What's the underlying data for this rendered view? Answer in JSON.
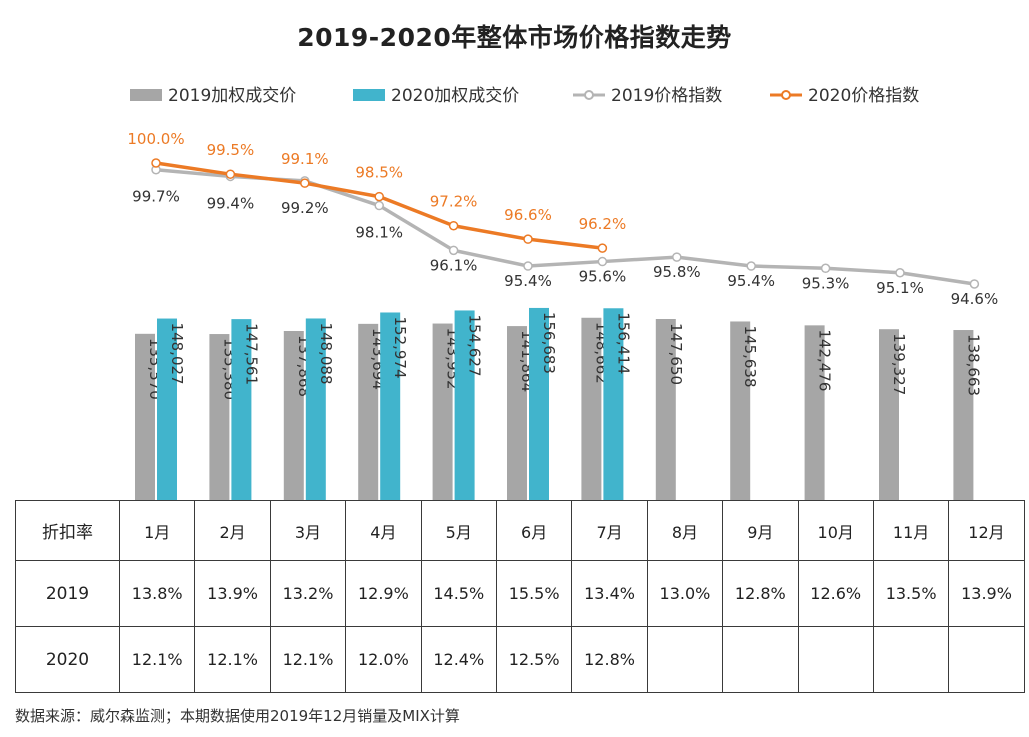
{
  "title": "2019-2020年整体市场价格指数走势",
  "colors": {
    "bar_2019": "#a6a6a6",
    "bar_2020": "#41b4cc",
    "line_2019": "#b4b4b4",
    "line_2020": "#ec7a25",
    "label_2020": "#ec7a25",
    "text": "#333333"
  },
  "legend": [
    {
      "label": "2019加权成交价",
      "kind": "bar",
      "color": "#a6a6a6"
    },
    {
      "label": "2020加权成交价",
      "kind": "bar",
      "color": "#41b4cc"
    },
    {
      "label": "2019价格指数",
      "kind": "line",
      "color": "#b4b4b4"
    },
    {
      "label": "2020价格指数",
      "kind": "line",
      "color": "#ec7a25"
    }
  ],
  "chart_data": {
    "type": "bar",
    "categories": [
      "1月",
      "2月",
      "3月",
      "4月",
      "5月",
      "6月",
      "7月",
      "8月",
      "9月",
      "10月",
      "11月",
      "12月"
    ],
    "bar_series": [
      {
        "name": "2019加权成交价",
        "values": [
          135570,
          135380,
          137868,
          143694,
          143952,
          141864,
          148662,
          147650,
          145638,
          142476,
          139327,
          138663
        ],
        "labels": [
          "135,570",
          "135,380",
          "137,868",
          "143,694",
          "143,952",
          "141,864",
          "148,662",
          "147,650",
          "145,638",
          "142,476",
          "139,327",
          "138,663"
        ]
      },
      {
        "name": "2020加权成交价",
        "values": [
          148027,
          147561,
          148088,
          152974,
          154627,
          156683,
          156414
        ],
        "labels": [
          "148,027",
          "147,561",
          "148,088",
          "152,974",
          "154,627",
          "156,683",
          "156,414"
        ]
      }
    ],
    "line_series": [
      {
        "name": "2019价格指数",
        "values": [
          99.7,
          99.4,
          99.2,
          98.1,
          96.1,
          95.4,
          95.6,
          95.8,
          95.4,
          95.3,
          95.1,
          94.6
        ],
        "labels": [
          "99.7%",
          "99.4%",
          "99.2%",
          "98.1%",
          "96.1%",
          "95.4%",
          "95.6%",
          "95.8%",
          "95.4%",
          "95.3%",
          "95.1%",
          "94.6%"
        ]
      },
      {
        "name": "2020价格指数",
        "values": [
          100.0,
          99.5,
          99.1,
          98.5,
          97.2,
          96.6,
          96.2
        ],
        "labels": [
          "100.0%",
          "99.5%",
          "99.1%",
          "98.5%",
          "97.2%",
          "96.6%",
          "96.2%"
        ]
      }
    ]
  },
  "table": {
    "header": [
      "折扣率",
      "1月",
      "2月",
      "3月",
      "4月",
      "5月",
      "6月",
      "7月",
      "8月",
      "9月",
      "10月",
      "11月",
      "12月"
    ],
    "rows": [
      {
        "year": "2019",
        "cells": [
          "13.8%",
          "13.9%",
          "13.2%",
          "12.9%",
          "14.5%",
          "15.5%",
          "13.4%",
          "13.0%",
          "12.8%",
          "12.6%",
          "13.5%",
          "13.9%"
        ]
      },
      {
        "year": "2020",
        "cells": [
          "12.1%",
          "12.1%",
          "12.1%",
          "12.0%",
          "12.4%",
          "12.5%",
          "12.8%",
          "",
          "",
          "",
          "",
          ""
        ]
      }
    ]
  },
  "footer": "数据来源：威尔森监测；本期数据使用2019年12月销量及MIX计算"
}
